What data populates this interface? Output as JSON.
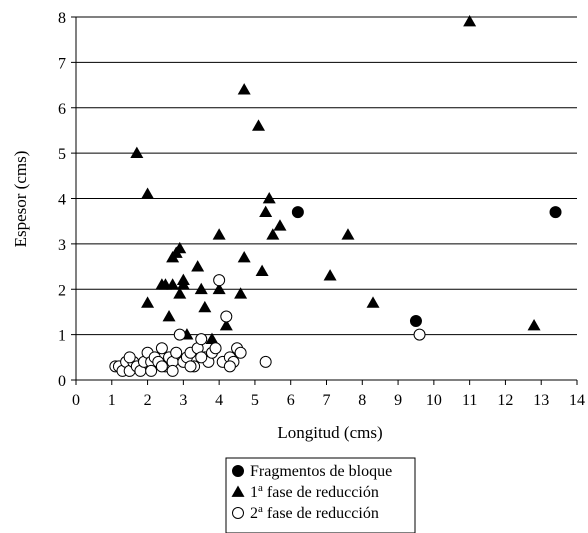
{
  "chart_data": {
    "type": "scatter",
    "xlabel": "Longitud (cms)",
    "ylabel": "Espesor (cms)",
    "xlim": [
      0,
      14
    ],
    "ylim": [
      0,
      8
    ],
    "xticks": [
      0,
      1,
      2,
      3,
      4,
      5,
      6,
      7,
      8,
      9,
      10,
      11,
      12,
      13,
      14
    ],
    "yticks": [
      0,
      1,
      2,
      3,
      4,
      5,
      6,
      7,
      8
    ],
    "grid": "horizontal",
    "legend_position": "bottom-center",
    "series": [
      {
        "name": "Fragmentos de bloque",
        "marker": "filled-circle",
        "color": "#000000",
        "points": [
          [
            6.2,
            3.7
          ],
          [
            9.5,
            1.3
          ],
          [
            13.4,
            3.7
          ]
        ]
      },
      {
        "name_base": "1",
        "name_sup": "a",
        "name_rest": " fase de reducción",
        "marker": "filled-triangle",
        "color": "#000000",
        "points": [
          [
            1.7,
            5.0
          ],
          [
            2.0,
            4.1
          ],
          [
            2.0,
            1.7
          ],
          [
            2.4,
            2.1
          ],
          [
            2.5,
            2.1
          ],
          [
            2.7,
            2.1
          ],
          [
            2.6,
            1.4
          ],
          [
            2.7,
            2.7
          ],
          [
            2.8,
            2.8
          ],
          [
            2.9,
            2.9
          ],
          [
            2.9,
            1.9
          ],
          [
            3.0,
            2.2
          ],
          [
            3.0,
            2.1
          ],
          [
            3.1,
            1.0
          ],
          [
            3.4,
            2.5
          ],
          [
            3.5,
            2.0
          ],
          [
            3.6,
            1.6
          ],
          [
            3.8,
            0.9
          ],
          [
            4.0,
            3.2
          ],
          [
            4.0,
            2.0
          ],
          [
            4.2,
            1.2
          ],
          [
            4.6,
            1.9
          ],
          [
            4.7,
            2.7
          ],
          [
            4.7,
            6.4
          ],
          [
            5.1,
            5.6
          ],
          [
            5.2,
            2.4
          ],
          [
            5.3,
            3.7
          ],
          [
            5.4,
            4.0
          ],
          [
            5.5,
            3.2
          ],
          [
            5.7,
            3.4
          ],
          [
            7.1,
            2.3
          ],
          [
            7.6,
            3.2
          ],
          [
            8.3,
            1.7
          ],
          [
            11.0,
            7.9
          ],
          [
            12.8,
            1.2
          ]
        ]
      },
      {
        "name_base": "2",
        "name_sup": "a",
        "name_rest": " fase de reducción",
        "marker": "open-circle",
        "color": "#000000",
        "points": [
          [
            1.1,
            0.3
          ],
          [
            1.2,
            0.3
          ],
          [
            1.3,
            0.2
          ],
          [
            1.4,
            0.4
          ],
          [
            1.5,
            0.2
          ],
          [
            1.6,
            0.4
          ],
          [
            1.7,
            0.3
          ],
          [
            1.8,
            0.2
          ],
          [
            1.9,
            0.4
          ],
          [
            2.0,
            0.6
          ],
          [
            2.1,
            0.4
          ],
          [
            2.2,
            0.5
          ],
          [
            2.3,
            0.4
          ],
          [
            2.4,
            0.7
          ],
          [
            2.5,
            0.3
          ],
          [
            2.6,
            0.5
          ],
          [
            2.7,
            0.4
          ],
          [
            2.8,
            0.6
          ],
          [
            2.9,
            1.0
          ],
          [
            3.0,
            0.4
          ],
          [
            3.1,
            0.5
          ],
          [
            3.2,
            0.6
          ],
          [
            3.3,
            0.3
          ],
          [
            3.4,
            0.7
          ],
          [
            3.5,
            0.9
          ],
          [
            3.6,
            0.5
          ],
          [
            3.7,
            0.4
          ],
          [
            3.8,
            0.6
          ],
          [
            3.9,
            0.7
          ],
          [
            4.0,
            2.2
          ],
          [
            4.1,
            0.4
          ],
          [
            4.2,
            1.4
          ],
          [
            4.3,
            0.5
          ],
          [
            4.4,
            0.4
          ],
          [
            4.5,
            0.7
          ],
          [
            4.6,
            0.6
          ],
          [
            5.3,
            0.4
          ],
          [
            9.6,
            1.0
          ],
          [
            2.1,
            0.2
          ],
          [
            2.7,
            0.2
          ],
          [
            3.2,
            0.3
          ],
          [
            1.5,
            0.5
          ],
          [
            2.4,
            0.3
          ],
          [
            3.5,
            0.5
          ],
          [
            4.3,
            0.3
          ]
        ]
      }
    ]
  }
}
